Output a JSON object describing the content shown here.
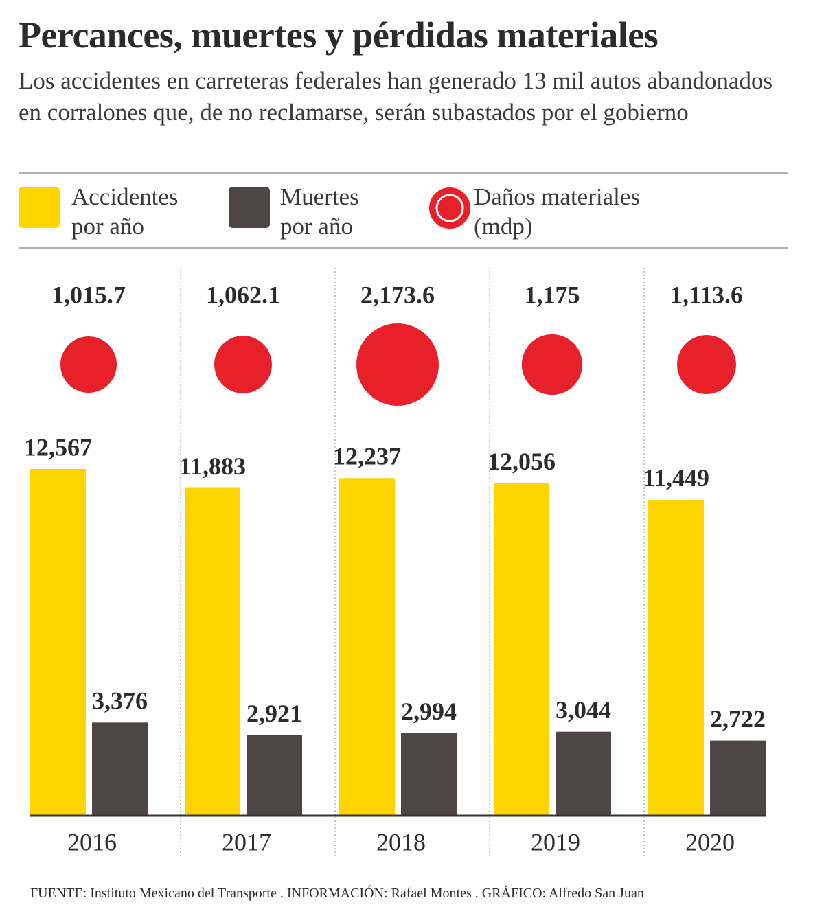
{
  "chart_data": {
    "type": "bar",
    "title": "Percances, muertes y pérdidas materiales",
    "subtitle": "Los accidentes en carreteras federales han generado 13 mil autos abandonados en corralones que, de no reclamarse, serán subastados por el gobierno",
    "source": "FUENTE: Instituto Mexicano del Transporte . INFORMACIÓN: Rafael Montes . GRÁFICO: Alfredo San Juan",
    "categories": [
      "2016",
      "2017",
      "2018",
      "2019",
      "2020"
    ],
    "series": [
      {
        "name": "Accidentes por año",
        "color": "#FFD400",
        "values": [
          12567,
          11883,
          12237,
          12056,
          11449
        ],
        "value_labels": [
          "12,567",
          "11,883",
          "12,237",
          "12,056",
          "11,449"
        ]
      },
      {
        "name": "Muertes por año",
        "color": "#4E4645",
        "values": [
          3376,
          2921,
          2994,
          3044,
          2722
        ],
        "value_labels": [
          "3,376",
          "2,921",
          "2,994",
          "3,044",
          "2,722"
        ]
      },
      {
        "name": "Daños materiales (mdp)",
        "color": "#E8202A",
        "type": "bubble",
        "values": [
          1015.7,
          1062.1,
          2173.6,
          1175,
          1113.6
        ],
        "value_labels": [
          "1,015.7",
          "1,062.1",
          "2,173.6",
          "1,175",
          "1,113.6"
        ]
      }
    ]
  }
}
